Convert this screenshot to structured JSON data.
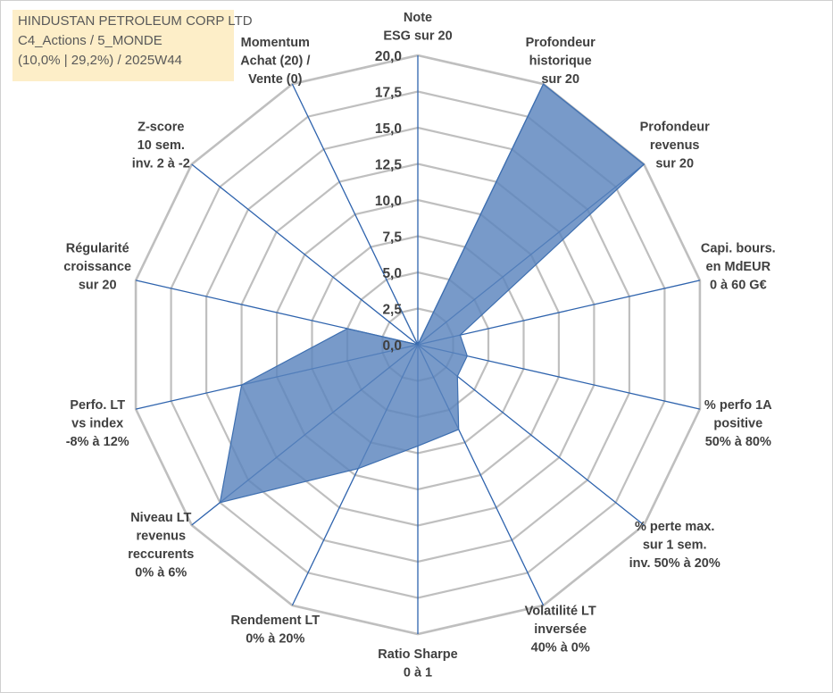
{
  "title": {
    "lines": [
      "HINDUSTAN PETROLEUM CORP LTD",
      "C4_Actions / 5_MONDE",
      "(10,0% | 29,2%) / 2025W44"
    ]
  },
  "colors": {
    "title_background": "#fdeec8",
    "title_text": "#595959",
    "grid": "#bfbfbf",
    "spoke": "#2e63ad",
    "series_fill": "#5a84bd",
    "series_stroke": "#3e6fb0",
    "label": "#404040"
  },
  "chart_data": {
    "type": "radar",
    "rlim": [
      0,
      20
    ],
    "tick_step": 2.5,
    "tick_labels": [
      "0,0",
      "2,5",
      "5,0",
      "7,5",
      "10,0",
      "12,5",
      "15,0",
      "17,5",
      "20,0"
    ],
    "grid": true,
    "axes": [
      {
        "label": [
          "Note",
          "ESG sur 20"
        ],
        "value": 0
      },
      {
        "label": [
          "Profondeur",
          "historique",
          "sur 20"
        ],
        "value": 20
      },
      {
        "label": [
          "Profondeur",
          "revenus",
          "sur 20"
        ],
        "value": 20
      },
      {
        "label": [
          "Capi. bours.",
          "en MdEUR",
          "0 à 60 G€"
        ],
        "value": 3
      },
      {
        "label": [
          "% perfo 1A",
          "positive",
          "50% à 80%"
        ],
        "value": 3.5
      },
      {
        "label": [
          "% perte max.",
          "sur 1 sem.",
          "inv. 50% à 20%"
        ],
        "value": 3.5
      },
      {
        "label": [
          "Volatilité LT",
          "inversée",
          "40% à 0%"
        ],
        "value": 6.5
      },
      {
        "label": [
          "Ratio Sharpe",
          "0 à 1"
        ],
        "value": 7
      },
      {
        "label": [
          "Rendement LT",
          "0% à 20%"
        ],
        "value": 9.5
      },
      {
        "label": [
          "Niveau LT",
          "revenus",
          "reccurents",
          "0% à 6%"
        ],
        "value": 17.5
      },
      {
        "label": [
          "Perfo. LT",
          "vs index",
          "-8% à 12%"
        ],
        "value": 12.5
      },
      {
        "label": [
          "Régularité",
          "croissance",
          "sur 20"
        ],
        "value": 5
      },
      {
        "label": [
          "Z-score",
          "10 sem.",
          "inv. 2 à -2"
        ],
        "value": 0
      },
      {
        "label": [
          "Momentum",
          "Achat (20) /",
          "Vente (0)"
        ],
        "value": 3
      }
    ],
    "series": [
      {
        "name": "HINDUSTAN PETROLEUM CORP LTD"
      }
    ]
  }
}
